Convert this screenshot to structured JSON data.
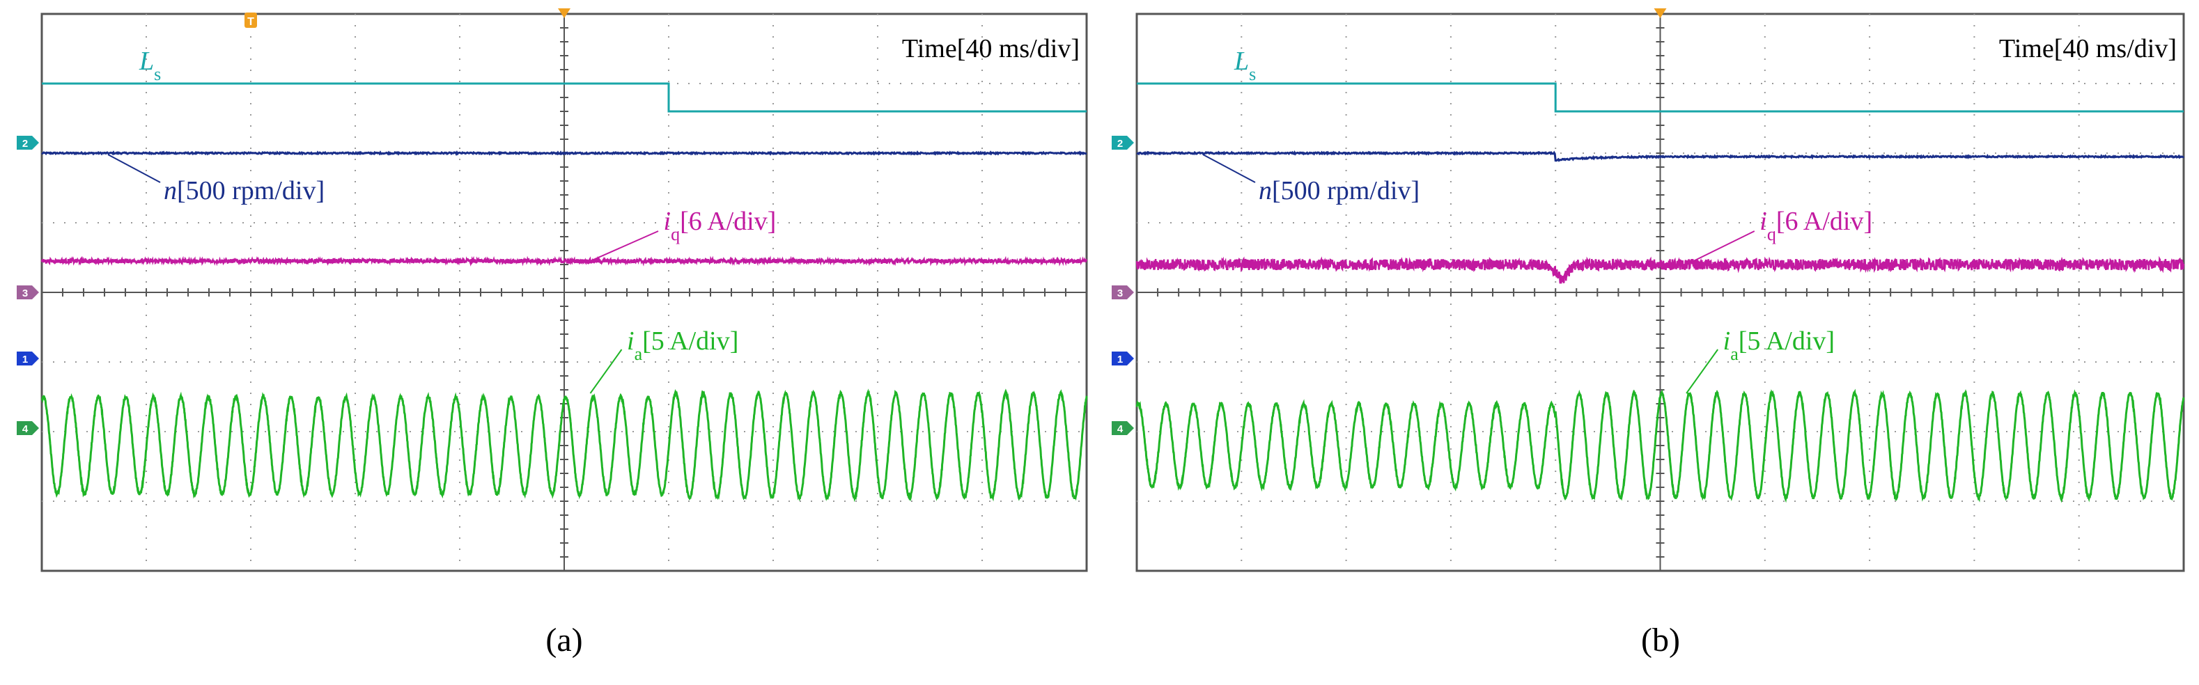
{
  "chart_data": [
    {
      "type": "line",
      "caption": "(a)",
      "time_scale_label": "Time[40 ms/div]",
      "trigger_marker": "T",
      "x_divisions": 10,
      "y_divisions": 8,
      "channel_markers": [
        "2",
        "3",
        "1",
        "4"
      ],
      "series": [
        {
          "name": "Ls",
          "symbol": "L",
          "subscript": "s",
          "color": "#19a6a8",
          "description": "step down",
          "levels_div": [
            7.0,
            6.6
          ],
          "step_at_div": 6.0
        },
        {
          "name": "n",
          "label_main": "n",
          "label_scale": "[500 rpm/div]",
          "color": "#1a2f8a",
          "levels_div": [
            6.0,
            6.0
          ],
          "dip_div": 0.0
        },
        {
          "name": "iq",
          "label_main": "i",
          "label_sub": "q",
          "label_scale": "[6 A/div]",
          "color": "#c21aa0",
          "levels_div": [
            4.45,
            4.45
          ],
          "dip_div": 0.0,
          "noise_div": 0.03
        },
        {
          "name": "ia",
          "label_main": "i",
          "label_sub": "a",
          "label_scale": "[5 A/div]",
          "color": "#1fb526",
          "center_div": 1.8,
          "amplitude_div": [
            0.7,
            0.75
          ],
          "cycles": 38
        }
      ]
    },
    {
      "type": "line",
      "caption": "(b)",
      "time_scale_label": "Time[40 ms/div]",
      "trigger_marker": "",
      "x_divisions": 10,
      "y_divisions": 8,
      "channel_markers": [
        "2",
        "3",
        "1",
        "4"
      ],
      "series": [
        {
          "name": "Ls",
          "symbol": "L",
          "subscript": "s",
          "color": "#19a6a8",
          "description": "step down",
          "levels_div": [
            7.0,
            6.6
          ],
          "step_at_div": 4.0
        },
        {
          "name": "n",
          "label_main": "n",
          "label_scale": "[500 rpm/div]",
          "color": "#1a2f8a",
          "levels_div": [
            6.0,
            5.95
          ],
          "dip_div": 0.05
        },
        {
          "name": "iq",
          "label_main": "i",
          "label_sub": "q",
          "label_scale": "[6 A/div]",
          "color": "#c21aa0",
          "levels_div": [
            4.4,
            4.4
          ],
          "dip_div": 0.2,
          "noise_div": 0.08
        },
        {
          "name": "ia",
          "label_main": "i",
          "label_sub": "a",
          "label_scale": "[5 A/div]",
          "color": "#1fb526",
          "center_div": 1.8,
          "amplitude_div": [
            0.6,
            0.75
          ],
          "cycles": 38
        }
      ]
    }
  ]
}
